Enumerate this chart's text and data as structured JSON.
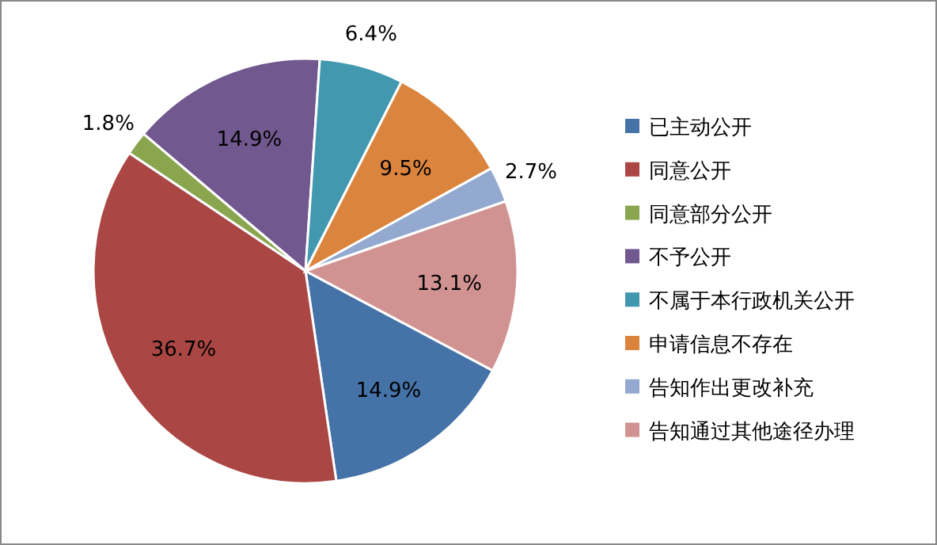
{
  "chart_data": {
    "type": "pie",
    "categories": [
      "已主动公开",
      "同意公开",
      "同意部分公开",
      "不予公开",
      "不属于本行政机关公开",
      "申请信息不存在",
      "告知作出更改补充",
      "告知通过其他途径办理"
    ],
    "values": [
      14.9,
      36.7,
      1.8,
      14.9,
      6.4,
      9.5,
      2.7,
      13.1
    ],
    "colors": [
      "#4572a7",
      "#aa4643",
      "#89a54e",
      "#71588f",
      "#4198af",
      "#db843d",
      "#93a9cf",
      "#d19392"
    ],
    "value_labels": [
      "14.9%",
      "36.7%",
      "1.8%",
      "14.9%",
      "6.4%",
      "9.5%",
      "2.7%",
      "13.1%"
    ],
    "legend": "right"
  }
}
